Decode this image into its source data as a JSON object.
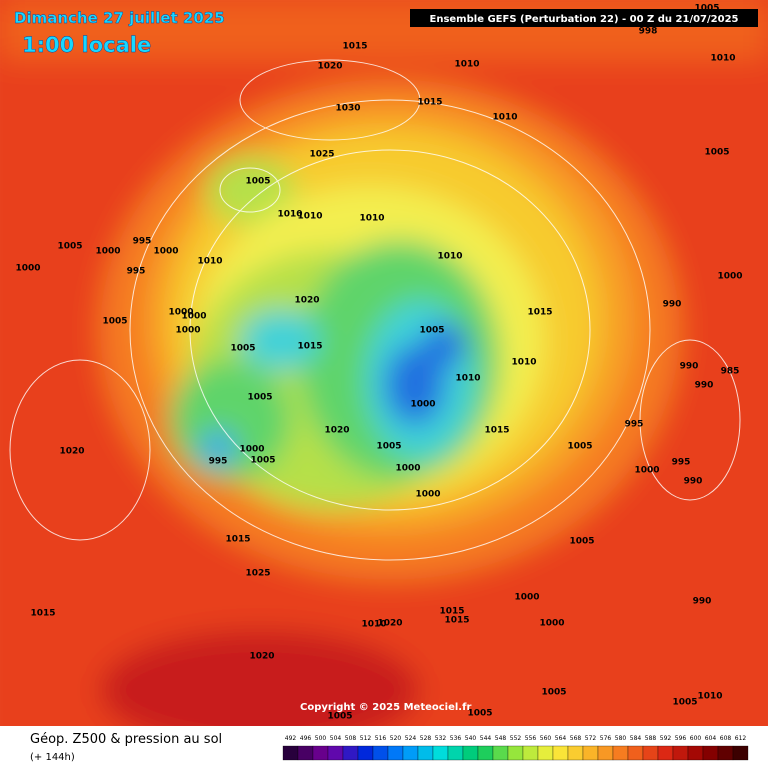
{
  "header": {
    "date": "Dimanche 27 juillet 2025",
    "local_time": "1:00 locale",
    "run": "Ensemble GEFS  (Perturbation 22)  - 00 Z du 21/07/2025"
  },
  "isobar_labels": [
    "1005",
    "998",
    "1015",
    "1010",
    "1010",
    "1020",
    "1030",
    "1015",
    "1010",
    "1025",
    "1005",
    "1005",
    "1010",
    "1010",
    "1010",
    "995",
    "1005",
    "1000",
    "1000",
    "1010",
    "1010",
    "995",
    "1000",
    "1000",
    "1020",
    "990",
    "1015",
    "1000",
    "1000",
    "1005",
    "1005",
    "1000",
    "1005",
    "1015",
    "1010",
    "990",
    "985",
    "990",
    "1010",
    "1000",
    "1005",
    "995",
    "1015",
    "1020",
    "1005",
    "1000",
    "1005",
    "1020",
    "995",
    "1005",
    "995",
    "1000",
    "1000",
    "990",
    "1000",
    "1015",
    "1005",
    "1025",
    "1000",
    "990",
    "1015",
    "1015",
    "1020",
    "1010",
    "1015",
    "1000",
    "1020",
    "1005",
    "1005",
    "1010",
    "1005",
    "1005"
  ],
  "footer": {
    "title": "Géop. Z500 & pression au sol",
    "lead": "(+ 144h)",
    "copyright": "Copyright © 2025 Meteociel.fr"
  },
  "scale_labels": [
    "492",
    "496",
    "500",
    "504",
    "508",
    "512",
    "516",
    "520",
    "524",
    "528",
    "532",
    "536",
    "540",
    "544",
    "548",
    "552",
    "556",
    "560",
    "564",
    "568",
    "572",
    "576",
    "580",
    "584",
    "588",
    "592",
    "596",
    "600",
    "604",
    "608",
    "612"
  ]
}
